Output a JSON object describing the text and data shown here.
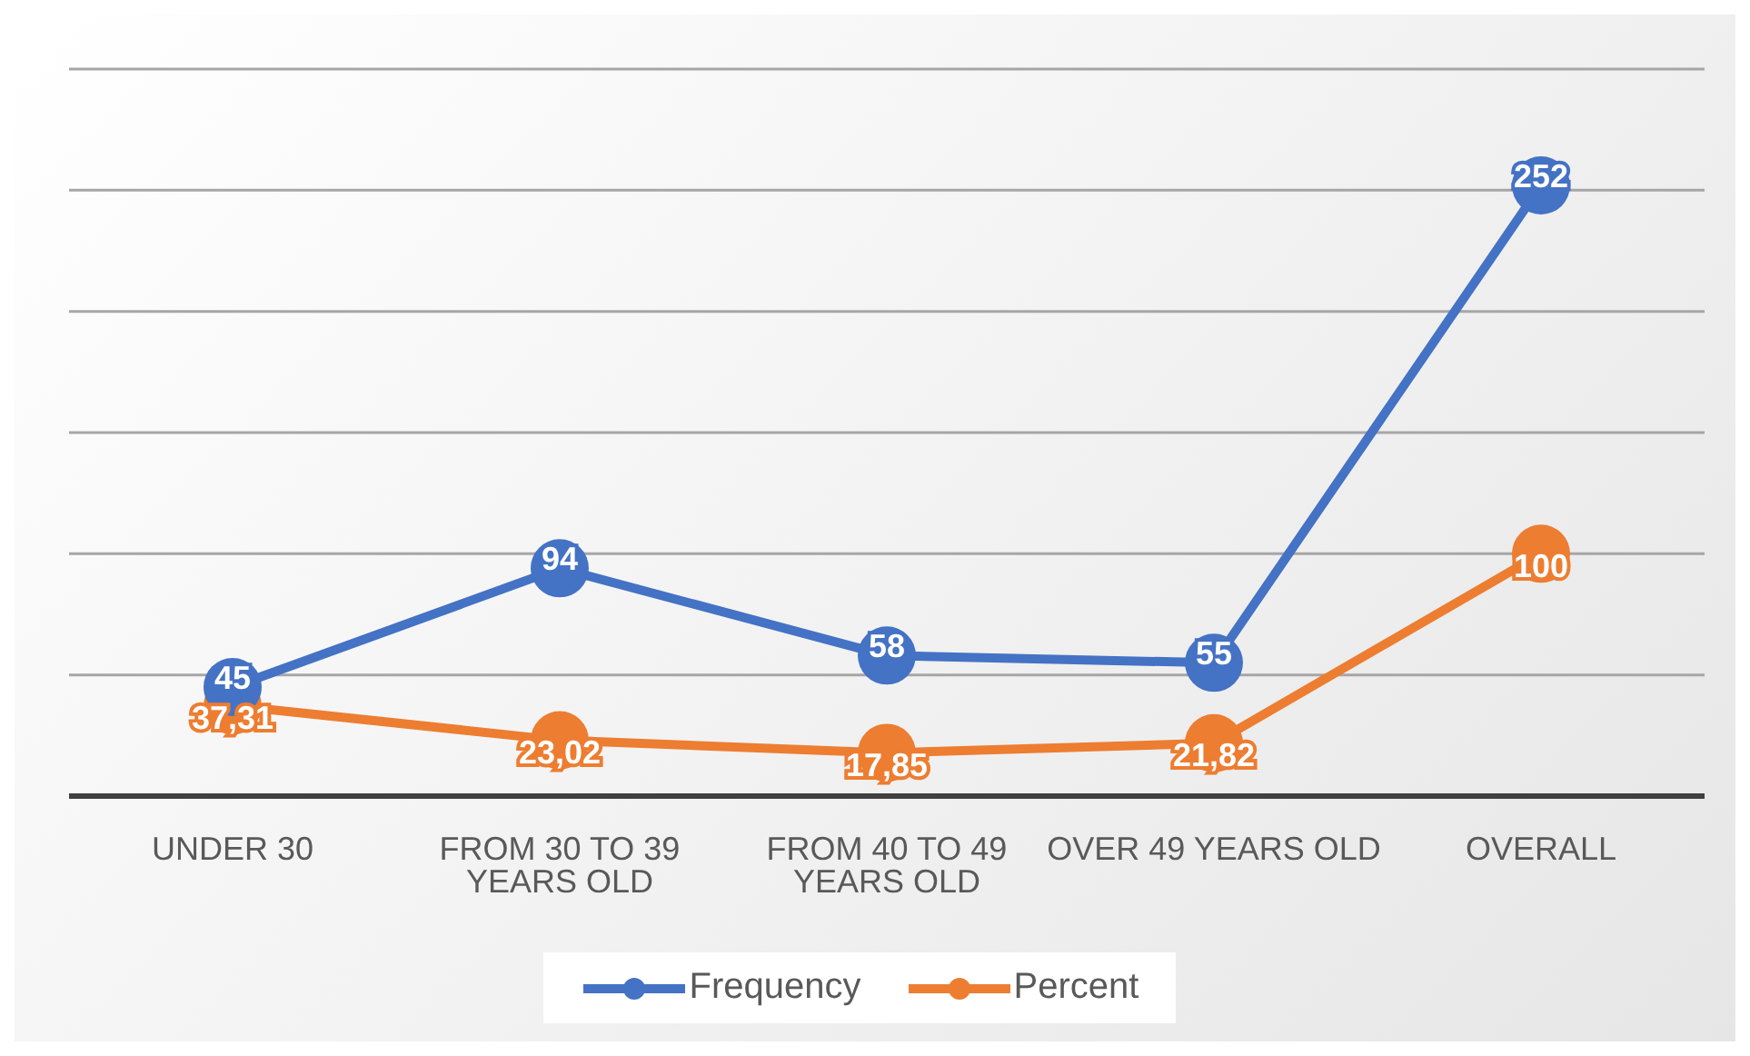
{
  "chart_data": {
    "type": "line",
    "categories": [
      "UNDER 30",
      "FROM 30 TO 39 YEARS OLD",
      "FROM 40 TO 49 YEARS OLD",
      "OVER 49 YEARS OLD",
      "OVERALL"
    ],
    "series": [
      {
        "name": "Frequency",
        "color": "#4472c4",
        "values": [
          45,
          94,
          58,
          55,
          252
        ],
        "value_labels": [
          "45",
          "94",
          "58",
          "55",
          "252"
        ]
      },
      {
        "name": "Percent",
        "color": "#ed7d31",
        "values": [
          37.31,
          23.02,
          17.85,
          21.82,
          100
        ],
        "value_labels": [
          "37,31",
          "23,02",
          "17,85",
          "21,82",
          "100"
        ]
      }
    ],
    "ylim": [
      0,
      300
    ],
    "yticks": [
      {
        "value": 0,
        "label": null
      },
      {
        "value": 50,
        "label": null
      },
      {
        "value": 100,
        "label": null
      },
      {
        "value": 150,
        "label": null
      },
      {
        "value": 200,
        "label": null
      },
      {
        "value": 250,
        "label": null
      },
      {
        "value": 300,
        "label": null
      }
    ],
    "tick_labels": "x",
    "grid": "y",
    "legend": "bottom",
    "marker": "circle",
    "line_style": "solid"
  }
}
